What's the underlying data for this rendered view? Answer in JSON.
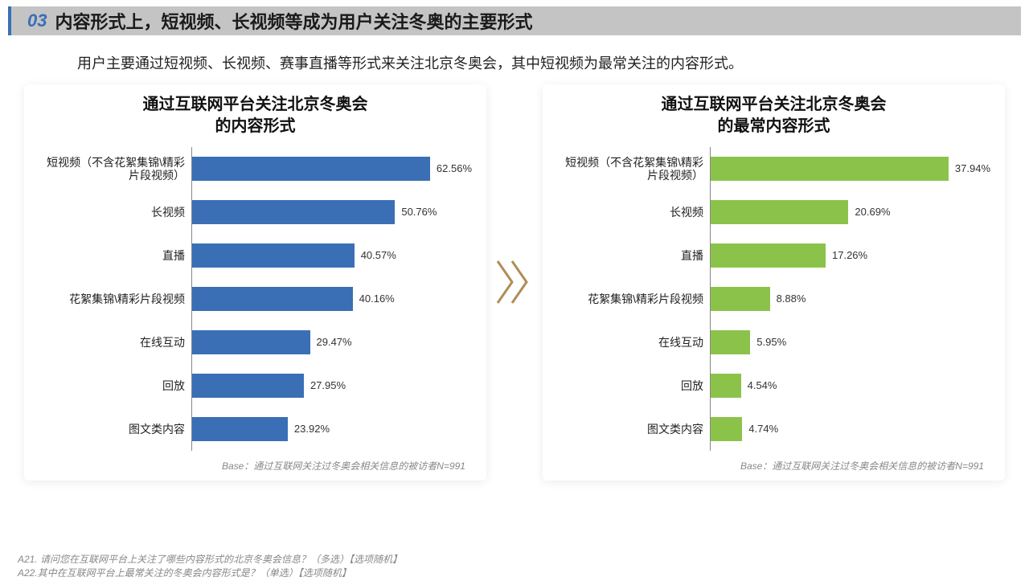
{
  "header": {
    "num": "03",
    "title": "内容形式上，短视频、长视频等成为用户关注冬奥的主要形式"
  },
  "subtitle": "用户主要通过短视频、长视频、赛事直播等形式来关注北京冬奥会，其中短视频为最常关注的内容形式。",
  "chart_left": {
    "type": "bar-horizontal",
    "title_line1": "通过互联网平台关注北京冬奥会",
    "title_line2": "的内容形式",
    "bar_color": "#3a6fb5",
    "max_value": 70,
    "categories": [
      "短视频（不含花絮集锦\\精彩片段视频）",
      "长视频",
      "直播",
      "花絮集锦\\精彩片段视频",
      "在线互动",
      "回放",
      "图文类内容"
    ],
    "values": [
      62.56,
      50.76,
      40.57,
      40.16,
      29.47,
      27.95,
      23.92
    ],
    "base": "Base：通过互联网关注过冬奥会相关信息的被访者N=991"
  },
  "chart_right": {
    "type": "bar-horizontal",
    "title_line1": "通过互联网平台关注北京冬奥会",
    "title_line2": "的最常内容形式",
    "bar_color": "#8bc34a",
    "max_value": 42,
    "categories": [
      "短视频（不含花絮集锦\\精彩片段视频）",
      "长视频",
      "直播",
      "花絮集锦\\精彩片段视频",
      "在线互动",
      "回放",
      "图文类内容"
    ],
    "values": [
      37.94,
      20.69,
      17.26,
      8.88,
      5.95,
      4.54,
      4.74
    ],
    "base": "Base：通过互联网关注过冬奥会相关信息的被访者N=991"
  },
  "footnotes": {
    "line1": "A21. 请问您在互联网平台上关注了哪些内容形式的北京冬奥会信息？（多选）【选项随机】",
    "line2": "A22.其中在互联网平台上最常关注的冬奥会内容形式是？（单选）【选项随机】"
  },
  "arrow_color": "#b08d57"
}
